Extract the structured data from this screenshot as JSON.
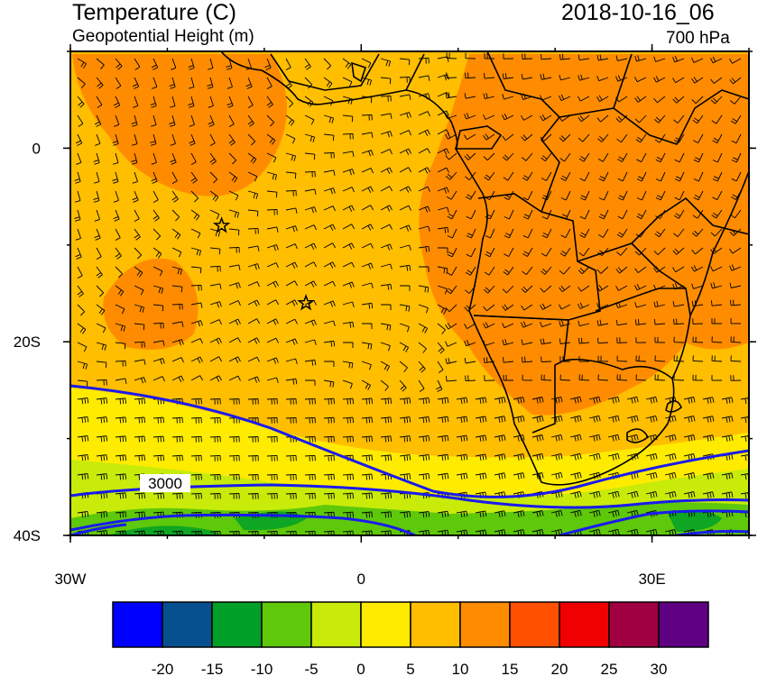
{
  "header": {
    "title": "Temperature (C)",
    "subtitle": "Geopotential Height (m)",
    "date": "2018-10-16_06",
    "level": "700 hPa"
  },
  "axes": {
    "y_ticks": [
      {
        "label": "0",
        "lat": 0
      },
      {
        "label": "20S",
        "lat": -20
      },
      {
        "label": "40S",
        "lat": -40
      }
    ],
    "x_ticks": [
      {
        "label": "30W",
        "lon": -30
      },
      {
        "label": "0",
        "lon": 0
      },
      {
        "label": "30E",
        "lon": 30
      }
    ],
    "lat_range": [
      -40,
      10
    ],
    "lon_range": [
      -30,
      40
    ]
  },
  "contour_label": "3000",
  "colorbar": {
    "colors": [
      "#0000ff",
      "#06508f",
      "#00a028",
      "#5ec80a",
      "#c8eb0a",
      "#ffeb00",
      "#ffbe00",
      "#ff8c00",
      "#ff5000",
      "#f00000",
      "#a00041",
      "#5f0083"
    ],
    "labels": [
      "-20",
      "-15",
      "-10",
      "-5",
      "0",
      "5",
      "10",
      "15",
      "20",
      "25",
      "30"
    ]
  },
  "stations": [
    {
      "name": "station-star",
      "lat": -8,
      "lon": -14.4
    },
    {
      "name": "station-star",
      "lat": -16,
      "lon": -5.7
    }
  ]
}
